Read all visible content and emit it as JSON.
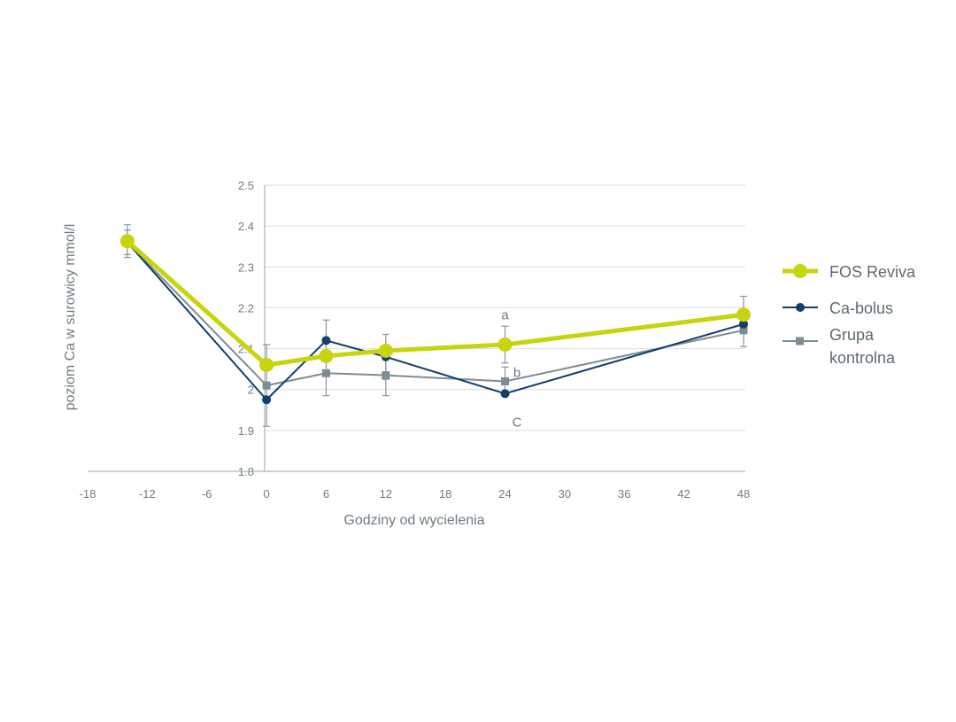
{
  "chart_data": {
    "type": "line",
    "title": "",
    "xlabel": "Godziny od wycielenia",
    "ylabel": "poziom Ca w surowicy mmol/l",
    "xlim": [
      -18,
      48
    ],
    "ylim": [
      1.8,
      2.5
    ],
    "x_ticks": [
      "-18",
      "-12",
      "-6",
      "0",
      "6",
      "12",
      "18",
      "24",
      "30",
      "36",
      "42",
      "48"
    ],
    "x_tick_values": [
      -18,
      -12,
      -6,
      0,
      6,
      12,
      18,
      24,
      30,
      36,
      42,
      48
    ],
    "y_ticks": [
      "1.8",
      "1.9",
      "2",
      "2.1",
      "2.2",
      "2.3",
      "2.4",
      "2.5"
    ],
    "y_tick_values": [
      1.8,
      1.9,
      2.0,
      2.1,
      2.2,
      2.3,
      2.4,
      2.5
    ],
    "grid": "horizontal",
    "legend_position": "right",
    "series": [
      {
        "name": "Grupa kontrolna",
        "legend_lines": [
          "Grupa",
          "kontrolna"
        ],
        "color": "#7e8c93",
        "marker": "square",
        "x": [
          -14,
          0,
          6,
          12,
          24,
          48
        ],
        "y": [
          2.36,
          2.01,
          2.04,
          2.035,
          2.02,
          2.145
        ],
        "err": [
          0.03,
          0.1,
          0.055,
          0.05,
          0.035,
          0.04
        ]
      },
      {
        "name": "Ca-bolus",
        "legend_lines": [
          "Ca-bolus"
        ],
        "color": "#123f6b",
        "marker": "circle",
        "x": [
          -14,
          0,
          6,
          12,
          24,
          48
        ],
        "y": [
          2.36,
          1.975,
          2.12,
          2.08,
          1.99,
          2.16
        ],
        "err": [
          0.0,
          0.0,
          0.05,
          0.055,
          0.0,
          0.0
        ]
      },
      {
        "name": "FOS Reviva",
        "legend_lines": [
          "FOS Reviva"
        ],
        "color": "#c8d40e",
        "marker": "circle",
        "x": [
          -14,
          0,
          6,
          12,
          24,
          48
        ],
        "y": [
          2.363,
          2.06,
          2.082,
          2.095,
          2.11,
          2.183
        ],
        "err": [
          0.04,
          0.0,
          0.0,
          0.0,
          0.045,
          0.045
        ]
      }
    ],
    "annotations": [
      {
        "text": "a",
        "x": 24,
        "y": 2.183
      },
      {
        "text": "b",
        "x": 25.2,
        "y": 2.042
      },
      {
        "text": "C",
        "x": 25.2,
        "y": 1.92
      }
    ]
  }
}
